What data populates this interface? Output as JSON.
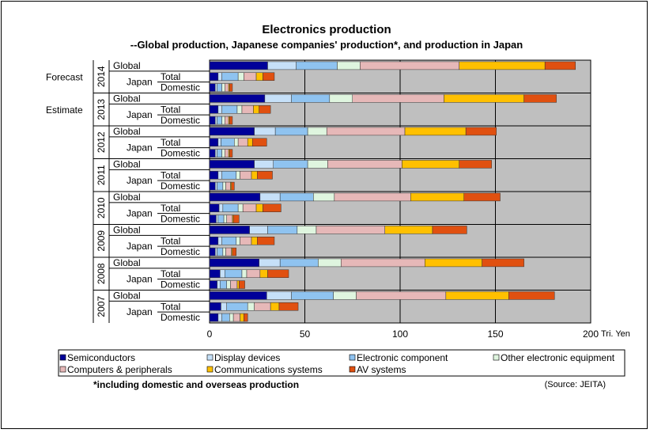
{
  "chart_data": {
    "type": "bar",
    "stacked": true,
    "orientation": "horizontal",
    "title": "Electronics production",
    "subtitle": "--Global production, Japanese companies' production*, and production in Japan",
    "unit_label": "Tri. Yen",
    "xlim": [
      0,
      200
    ],
    "x_ticks": [
      0,
      50,
      100,
      150,
      200
    ],
    "grid": true,
    "legend_position": "bottom",
    "footnote": "*including domestic and overseas production",
    "source": "(Source: JEITA)",
    "region_label": "Japan",
    "series": [
      {
        "name": "Semiconductors",
        "color": "#000099"
      },
      {
        "name": "Display devices",
        "color": "#c6e0f8"
      },
      {
        "name": "Electronic component",
        "color": "#8fc3f0"
      },
      {
        "name": "Other electronic equipment",
        "color": "#dff5df"
      },
      {
        "name": "Computers & peripherals",
        "color": "#e6b8b8"
      },
      {
        "name": "Communications systems",
        "color": "#ffc000"
      },
      {
        "name": "AV systems",
        "color": "#e05010"
      }
    ],
    "years": [
      {
        "year": "2014",
        "status": "Forecast",
        "global": [
          30.5,
          15,
          21.5,
          12,
          52,
          45,
          16
        ],
        "total": [
          4.5,
          2,
          8.5,
          3,
          6.5,
          3.5,
          6
        ],
        "domestic": [
          3,
          1,
          2.5,
          1.5,
          2,
          0.5,
          1.5
        ]
      },
      {
        "year": "2013",
        "status": "Estimate",
        "global": [
          29,
          14,
          20,
          12,
          48,
          42,
          17
        ],
        "total": [
          4.5,
          2,
          8,
          2.5,
          6,
          3,
          6
        ],
        "domestic": [
          3,
          1,
          2.5,
          1.5,
          2,
          0.5,
          1.5
        ]
      },
      {
        "year": "2012",
        "status": "",
        "global": [
          23.5,
          11,
          17,
          10,
          41,
          32,
          16
        ],
        "total": [
          4.5,
          1.5,
          7,
          2,
          5,
          2.5,
          7.5
        ],
        "domestic": [
          3,
          1,
          2.5,
          1.5,
          2,
          0.5,
          1.5
        ]
      },
      {
        "year": "2011",
        "status": "",
        "global": [
          23.5,
          10,
          18,
          10.5,
          39,
          30,
          17
        ],
        "total": [
          4.5,
          2,
          7.5,
          2,
          6,
          3,
          8
        ],
        "domestic": [
          3,
          1,
          3,
          1.5,
          2.5,
          0.5,
          1.5
        ]
      },
      {
        "year": "2010",
        "status": "",
        "global": [
          26.5,
          10.5,
          17.5,
          11,
          40,
          28,
          19
        ],
        "total": [
          5,
          2,
          8,
          2.5,
          7,
          3.5,
          9.5
        ],
        "domestic": [
          3.5,
          1,
          3,
          1.5,
          3,
          0.5,
          3
        ]
      },
      {
        "year": "2009",
        "status": "",
        "global": [
          21,
          9.5,
          15.5,
          10,
          36,
          25,
          18
        ],
        "total": [
          4.5,
          2,
          7.5,
          2,
          6,
          3,
          9
        ],
        "domestic": [
          3,
          1,
          3,
          1.5,
          3,
          0.5,
          2
        ]
      },
      {
        "year": "2008",
        "status": "",
        "global": [
          26,
          11,
          20,
          12,
          44,
          30,
          22
        ],
        "total": [
          5.5,
          2.5,
          9,
          2.5,
          7,
          4,
          11
        ],
        "domestic": [
          4,
          1.5,
          3.5,
          2,
          3.5,
          1,
          3
        ]
      },
      {
        "year": "2007",
        "status": "",
        "global": [
          30,
          13,
          22,
          12,
          47,
          33,
          24
        ],
        "total": [
          6,
          3,
          11,
          3.5,
          8.5,
          4.5,
          10
        ],
        "domestic": [
          4.5,
          2,
          4,
          2,
          3.5,
          2,
          2
        ]
      }
    ],
    "row_labels": {
      "global": "Global",
      "total": "Total",
      "domestic": "Domestic"
    }
  }
}
